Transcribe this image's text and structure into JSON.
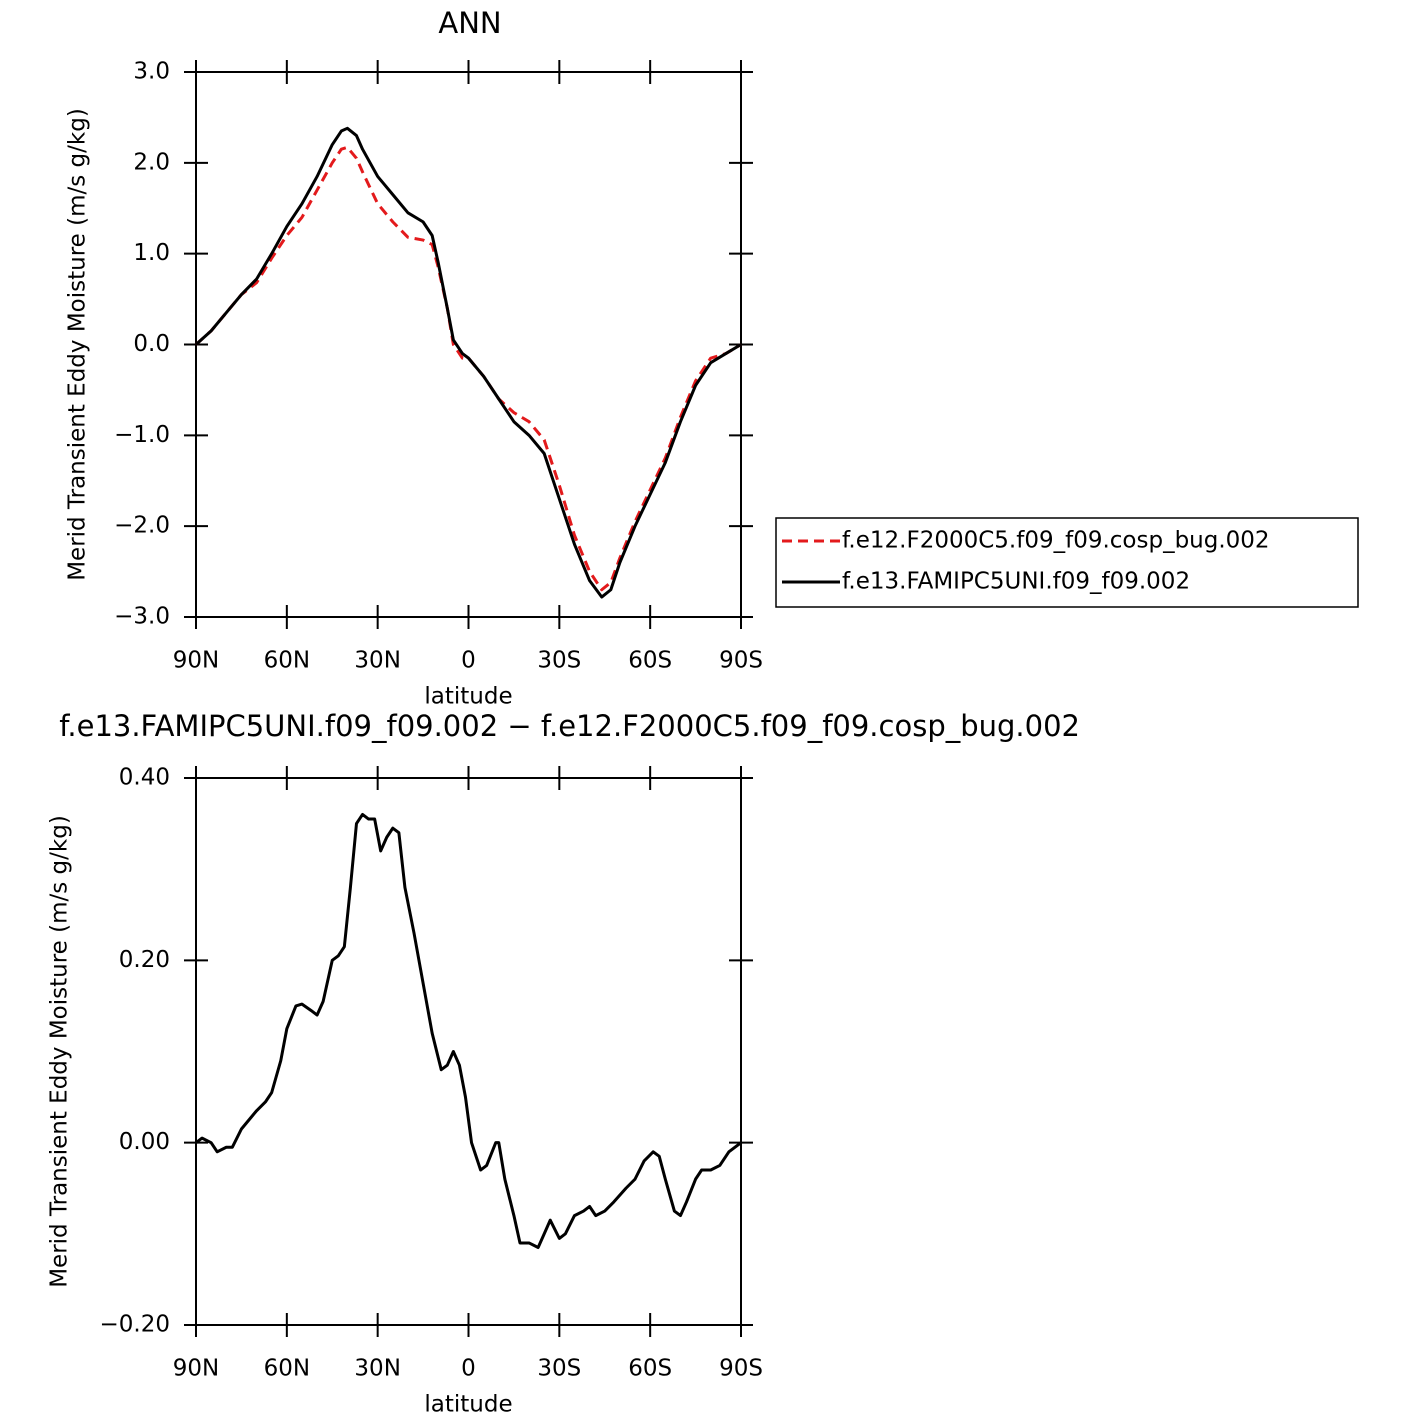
{
  "chart_data": [
    {
      "type": "line",
      "title": "ANN",
      "xlabel": "latitude",
      "ylabel": "Merid Transient Eddy Moisture (m/s g/kg)",
      "x": [
        90,
        85,
        80,
        75,
        70,
        65,
        60,
        55,
        50,
        45,
        42,
        40,
        37,
        35,
        30,
        25,
        20,
        15,
        12,
        10,
        7,
        5,
        2,
        0,
        -5,
        -10,
        -15,
        -20,
        -25,
        -30,
        -35,
        -40,
        -44,
        -47,
        -50,
        -55,
        -60,
        -65,
        -70,
        -75,
        -80,
        -85,
        -90
      ],
      "xlim": [
        90,
        -90
      ],
      "xticks": [
        {
          "value": 90,
          "label": "90N"
        },
        {
          "value": 60,
          "label": "60N"
        },
        {
          "value": 30,
          "label": "30N"
        },
        0,
        {
          "value": -30,
          "label": "30S"
        },
        {
          "value": -60,
          "label": "60S"
        },
        {
          "value": -90,
          "label": "90S"
        }
      ],
      "ylim": [
        -3,
        3
      ],
      "yticks": [
        {
          "value": 3,
          "label": "3.0"
        },
        {
          "value": 2,
          "label": "2.0"
        },
        {
          "value": 1,
          "label": "1.0"
        },
        {
          "value": 0,
          "label": "0.0"
        },
        {
          "value": -1,
          "label": "−1.0"
        },
        {
          "value": -2,
          "label": "−2.0"
        },
        {
          "value": -3,
          "label": "−3.0"
        }
      ],
      "legend": "right",
      "series": [
        {
          "name": "f.e12.F2000C5.f09_f09.cosp_bug.002",
          "color": "#e31a1c",
          "dashed": true,
          "values": [
            0,
            0.15,
            0.35,
            0.55,
            0.68,
            0.95,
            1.2,
            1.4,
            1.7,
            2.0,
            2.15,
            2.17,
            2.05,
            1.9,
            1.55,
            1.35,
            1.18,
            1.15,
            1.1,
            0.85,
            0.4,
            0,
            -0.15,
            -0.15,
            -0.35,
            -0.6,
            -0.75,
            -0.85,
            -1.05,
            -1.55,
            -2.1,
            -2.5,
            -2.7,
            -2.62,
            -2.35,
            -1.95,
            -1.6,
            -1.25,
            -0.8,
            -0.4,
            -0.15,
            -0.1,
            0
          ]
        },
        {
          "name": "f.e13.FAMIPC5UNI.f09_f09.002",
          "color": "#000000",
          "dashed": false,
          "values": [
            0,
            0.15,
            0.35,
            0.55,
            0.72,
            1.0,
            1.3,
            1.55,
            1.85,
            2.2,
            2.35,
            2.38,
            2.3,
            2.15,
            1.85,
            1.65,
            1.45,
            1.35,
            1.2,
            0.9,
            0.4,
            0.05,
            -0.1,
            -0.15,
            -0.35,
            -0.6,
            -0.85,
            -1.0,
            -1.2,
            -1.7,
            -2.2,
            -2.6,
            -2.78,
            -2.7,
            -2.4,
            -2.0,
            -1.65,
            -1.3,
            -0.85,
            -0.45,
            -0.2,
            -0.1,
            0
          ]
        }
      ]
    },
    {
      "type": "line",
      "title": "f.e13.FAMIPC5UNI.f09_f09.002 − f.e12.F2000C5.f09_f09.cosp_bug.002",
      "xlabel": "latitude",
      "ylabel": "Merid Transient Eddy Moisture (m/s g/kg)",
      "x": [
        90,
        88,
        85,
        83,
        80,
        78,
        75,
        70,
        67,
        65,
        62,
        60,
        57,
        55,
        52,
        50,
        48,
        45,
        43,
        41,
        39,
        37,
        35,
        33,
        31,
        29,
        27,
        25,
        23,
        21,
        18,
        15,
        12,
        9,
        7,
        5,
        3,
        1,
        -1,
        -4,
        -6,
        -9,
        -10,
        -12,
        -15,
        -17,
        -20,
        -23,
        -25,
        -27,
        -30,
        -32,
        -35,
        -38,
        -40,
        -42,
        -45,
        -48,
        -52,
        -55,
        -58,
        -61,
        -63,
        -65,
        -68,
        -70,
        -72,
        -75,
        -77,
        -80,
        -83,
        -86,
        -90
      ],
      "xlim": [
        90,
        -90
      ],
      "xticks": [
        {
          "value": 90,
          "label": "90N"
        },
        {
          "value": 60,
          "label": "60N"
        },
        {
          "value": 30,
          "label": "30N"
        },
        0,
        {
          "value": -30,
          "label": "30S"
        },
        {
          "value": -60,
          "label": "60S"
        },
        {
          "value": -90,
          "label": "90S"
        }
      ],
      "ylim": [
        -0.2,
        0.4
      ],
      "yticks": [
        {
          "value": 0.4,
          "label": "0.40"
        },
        {
          "value": 0.2,
          "label": "0.20"
        },
        {
          "value": 0,
          "label": "0.00"
        },
        {
          "value": -0.2,
          "label": "−0.20"
        }
      ],
      "color": "#000000",
      "values": [
        0,
        0.005,
        0,
        -0.01,
        -0.005,
        -0.005,
        0.015,
        0.035,
        0.045,
        0.055,
        0.09,
        0.125,
        0.15,
        0.152,
        0.145,
        0.14,
        0.155,
        0.2,
        0.205,
        0.215,
        0.28,
        0.35,
        0.36,
        0.355,
        0.355,
        0.32,
        0.335,
        0.345,
        0.34,
        0.28,
        0.23,
        0.175,
        0.12,
        0.08,
        0.085,
        0.1,
        0.085,
        0.05,
        0,
        -0.03,
        -0.025,
        0,
        0,
        -0.04,
        -0.08,
        -0.11,
        -0.11,
        -0.115,
        -0.1,
        -0.085,
        -0.105,
        -0.1,
        -0.08,
        -0.075,
        -0.07,
        -0.08,
        -0.075,
        -0.065,
        -0.05,
        -0.04,
        -0.02,
        -0.01,
        -0.015,
        -0.04,
        -0.075,
        -0.08,
        -0.065,
        -0.04,
        -0.03,
        -0.03,
        -0.025,
        -0.01,
        0
      ]
    }
  ]
}
